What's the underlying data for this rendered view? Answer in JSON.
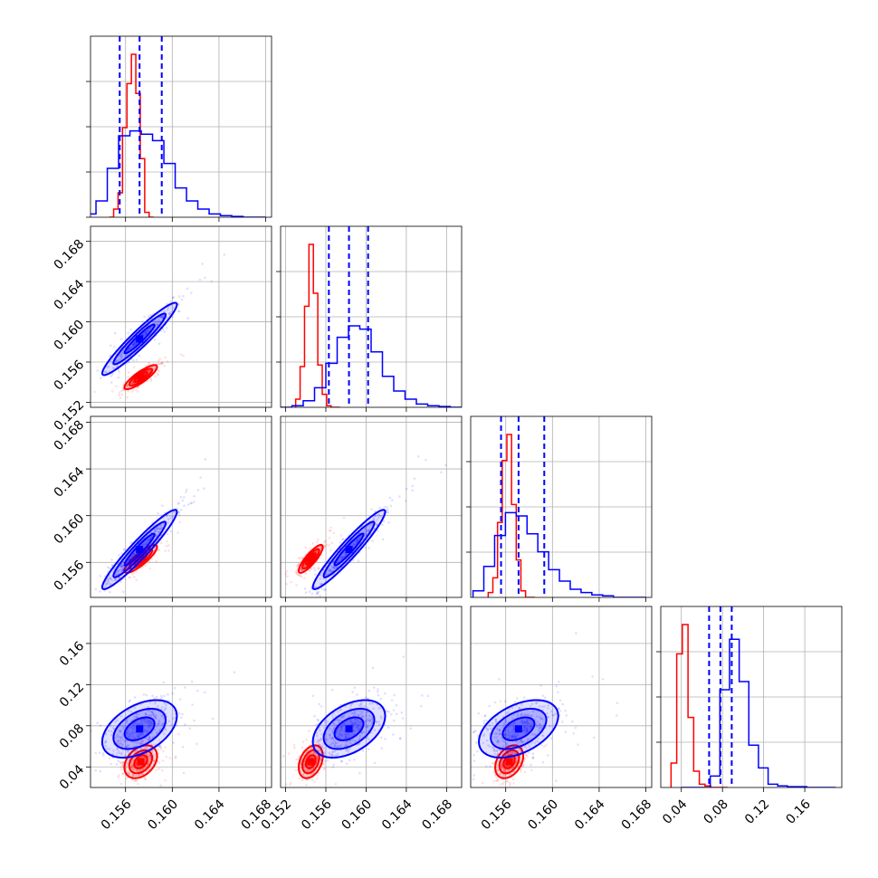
{
  "colors": {
    "series_a": "#ff0000",
    "series_b": "#0000ff",
    "grid": "#b0b0b0"
  },
  "chart_data": {
    "type": "corner",
    "grid": true,
    "parameters": [
      {
        "index": 0,
        "range": [
          0.153,
          0.1685
        ],
        "ticks": [
          0.156,
          0.16,
          0.164,
          0.168
        ],
        "tick_labels": [
          "0.156",
          "0.160",
          "0.164",
          "0.168"
        ]
      },
      {
        "index": 1,
        "range": [
          0.1515,
          0.1695
        ],
        "ticks": [
          0.152,
          0.156,
          0.16,
          0.164,
          0.168
        ],
        "tick_labels": [
          "0.152",
          "0.156",
          "0.160",
          "0.164",
          "0.168"
        ]
      },
      {
        "index": 2,
        "range": [
          0.153,
          0.1685
        ],
        "ticks": [
          0.156,
          0.16,
          0.164,
          0.168
        ],
        "tick_labels": [
          "0.156",
          "0.160",
          "0.164",
          "0.168"
        ]
      },
      {
        "index": 3,
        "range": [
          0.02,
          0.196
        ],
        "ticks": [
          0.04,
          0.08,
          0.12,
          0.16
        ],
        "tick_labels": [
          "0.04",
          "0.08",
          "0.12",
          "0.16"
        ]
      }
    ],
    "series": [
      {
        "color": "#ff0000",
        "means": [
          0.1573,
          0.1545,
          0.1563,
          0.045
        ],
        "stds": [
          0.0007,
          0.0006,
          0.0006,
          0.008
        ],
        "histograms": [
          {
            "edges": [
              0.1546,
              0.1584
            ],
            "counts": [
              0,
              0.05,
              0.15,
              0.55,
              0.82,
              1.0,
              0.76,
              0.36,
              0.03,
              0
            ]
          },
          {
            "edges": [
              0.153,
              0.1574
            ],
            "counts": [
              0.05,
              0.25,
              0.62,
              1.0,
              0.7,
              0.26,
              0.08,
              0.01,
              0,
              0
            ]
          },
          {
            "edges": [
              0.1545,
              0.1585
            ],
            "counts": [
              0.03,
              0.12,
              0.46,
              0.84,
              1.0,
              0.57,
              0.23,
              0.04,
              0,
              0
            ]
          },
          {
            "edges": [
              0.03,
              0.085
            ],
            "counts": [
              0.15,
              0.82,
              1.0,
              0.43,
              0.1,
              0.02,
              0.01,
              0,
              0,
              0
            ]
          }
        ]
      },
      {
        "color": "#0000ff",
        "means": [
          0.1572,
          0.1583,
          0.1571,
          0.077
        ],
        "stds": [
          0.0016,
          0.0018,
          0.0017,
          0.014
        ],
        "quantile_lines": [
          [
            0.1555,
            0.1572,
            0.1591
          ],
          [
            0.1563,
            0.1583,
            0.1602
          ],
          [
            0.1556,
            0.1571,
            0.1593
          ],
          [
            0.067,
            0.078,
            0.089
          ]
        ],
        "histograms": [
          {
            "edges": [
              0.1525,
              0.168
            ],
            "counts": [
              0.02,
              0.1,
              0.3,
              0.5,
              0.53,
              0.51,
              0.47,
              0.33,
              0.18,
              0.1,
              0.05,
              0.02,
              0.01,
              0.005,
              0,
              0
            ]
          },
          {
            "edges": [
              0.1515,
              0.1695
            ],
            "counts": [
              0,
              0.01,
              0.04,
              0.12,
              0.27,
              0.43,
              0.5,
              0.48,
              0.34,
              0.19,
              0.1,
              0.05,
              0.02,
              0.01,
              0.005,
              0
            ]
          },
          {
            "edges": [
              0.1532,
              0.168
            ],
            "counts": [
              0.04,
              0.19,
              0.38,
              0.52,
              0.5,
              0.39,
              0.28,
              0.17,
              0.1,
              0.05,
              0.03,
              0.015,
              0.01,
              0,
              0,
              0
            ]
          },
          {
            "edges": [
              0.04,
              0.19
            ],
            "counts": [
              0,
              0,
              0,
              0.07,
              0.6,
              0.91,
              0.65,
              0.26,
              0.12,
              0.02,
              0.01,
              0.005,
              0.005,
              0,
              0,
              0
            ]
          }
        ]
      }
    ]
  }
}
